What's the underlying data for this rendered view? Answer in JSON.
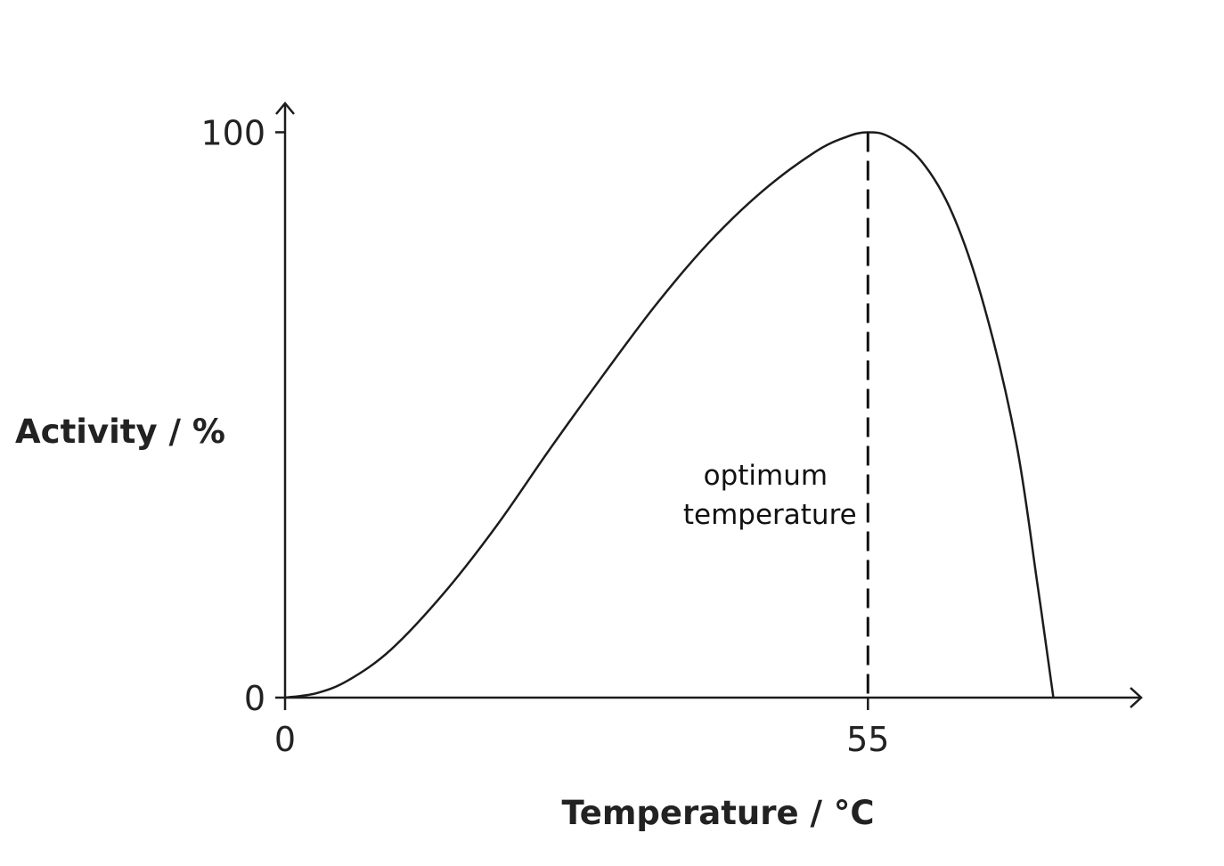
{
  "chart_data": {
    "type": "line",
    "title": "",
    "xlabel": "Temperature / °C",
    "ylabel": "Activity / %",
    "xlim": [
      0,
      77
    ],
    "ylim": [
      0,
      110
    ],
    "xticks": [
      {
        "value": 0,
        "label": "0"
      },
      {
        "value": 55,
        "label": "55"
      }
    ],
    "yticks": [
      {
        "value": 0,
        "label": "0"
      },
      {
        "value": 100,
        "label": "100"
      }
    ],
    "series": [
      {
        "x": [
          0,
          3,
          6,
          10,
          15,
          20,
          25,
          30,
          35,
          40,
          45,
          50,
          53,
          55,
          57,
          60,
          63,
          66,
          69,
          71,
          72.5
        ],
        "y": [
          0,
          0.8,
          3.1,
          8.5,
          18.5,
          30.5,
          44,
          57,
          69.5,
          80.5,
          89.5,
          96.5,
          99.2,
          100,
          99.2,
          95,
          85.5,
          69,
          45,
          20,
          0
        ]
      }
    ],
    "annotations": [
      {
        "text_lines": [
          "optimum",
          "temperature"
        ],
        "x": 55,
        "style": "dashed-vertical"
      }
    ],
    "grid": false,
    "legend": "none"
  }
}
